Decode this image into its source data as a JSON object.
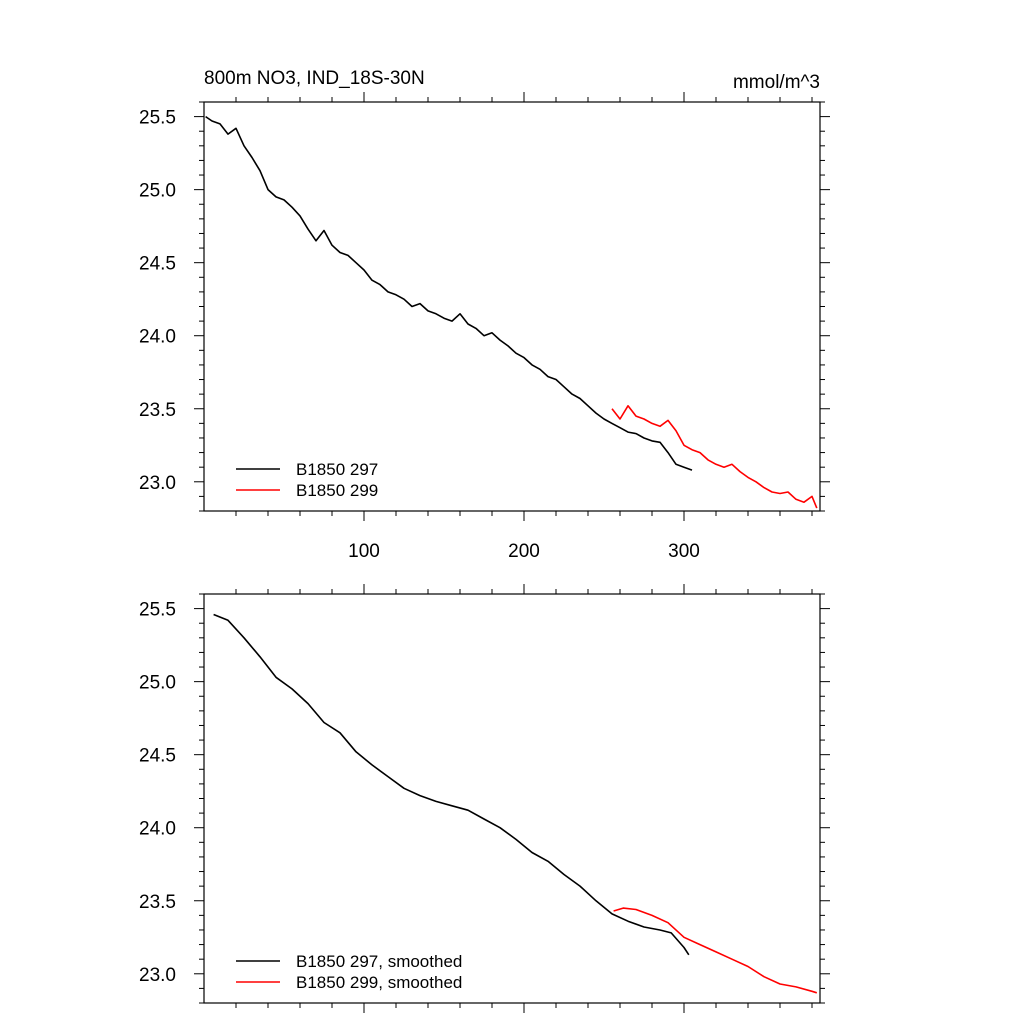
{
  "title": "800m NO3, IND_18S-30N",
  "units": "mmol/m^3",
  "colors": {
    "run297": "#000000",
    "run299": "#ff0000",
    "frame": "#000000"
  },
  "chart_data": [
    {
      "type": "line",
      "panel": "raw",
      "xlim": [
        0,
        385
      ],
      "ylim": [
        22.8,
        25.6
      ],
      "xticks": [
        100,
        200,
        300
      ],
      "xtick_labels": [
        "100",
        "200",
        "300"
      ],
      "yticks": [
        23.0,
        23.5,
        24.0,
        24.5,
        25.0,
        25.5
      ],
      "ytick_labels": [
        "23.0",
        "23.5",
        "24.0",
        "24.5",
        "25.0",
        "25.5"
      ],
      "legend_position": "bottom-left",
      "series": [
        {
          "name": "B1850 297",
          "color": "#000000",
          "x": [
            1,
            5,
            10,
            15,
            20,
            25,
            30,
            35,
            40,
            45,
            50,
            55,
            60,
            65,
            70,
            75,
            80,
            85,
            90,
            95,
            100,
            105,
            110,
            115,
            120,
            125,
            130,
            135,
            140,
            145,
            150,
            155,
            160,
            165,
            170,
            175,
            180,
            185,
            190,
            195,
            200,
            205,
            210,
            215,
            220,
            225,
            230,
            235,
            240,
            245,
            250,
            255,
            260,
            265,
            270,
            275,
            280,
            285,
            290,
            295,
            300,
            305
          ],
          "y": [
            25.5,
            25.47,
            25.45,
            25.38,
            25.42,
            25.3,
            25.22,
            25.13,
            25.0,
            24.95,
            24.93,
            24.88,
            24.82,
            24.73,
            24.65,
            24.72,
            24.62,
            24.57,
            24.55,
            24.5,
            24.45,
            24.38,
            24.35,
            24.3,
            24.28,
            24.25,
            24.2,
            24.22,
            24.17,
            24.15,
            24.12,
            24.1,
            24.15,
            24.08,
            24.05,
            24.0,
            24.02,
            23.97,
            23.93,
            23.88,
            23.85,
            23.8,
            23.77,
            23.72,
            23.7,
            23.65,
            23.6,
            23.57,
            23.52,
            23.47,
            23.43,
            23.4,
            23.37,
            23.34,
            23.33,
            23.3,
            23.28,
            23.27,
            23.2,
            23.12,
            23.1,
            23.08
          ]
        },
        {
          "name": "B1850 299",
          "color": "#ff0000",
          "x": [
            255,
            260,
            265,
            270,
            275,
            280,
            285,
            290,
            295,
            300,
            305,
            310,
            315,
            320,
            325,
            330,
            335,
            340,
            345,
            350,
            355,
            360,
            365,
            370,
            375,
            380,
            383
          ],
          "y": [
            23.5,
            23.43,
            23.52,
            23.45,
            23.43,
            23.4,
            23.38,
            23.42,
            23.35,
            23.25,
            23.22,
            23.2,
            23.15,
            23.12,
            23.1,
            23.12,
            23.07,
            23.03,
            23.0,
            22.96,
            22.93,
            22.92,
            22.93,
            22.88,
            22.86,
            22.9,
            22.82
          ]
        }
      ]
    },
    {
      "type": "line",
      "panel": "smoothed",
      "xlim": [
        0,
        385
      ],
      "ylim": [
        22.8,
        25.6
      ],
      "xticks": [
        100,
        200,
        300
      ],
      "yticks": [
        23.0,
        23.5,
        24.0,
        24.5,
        25.0,
        25.5
      ],
      "ytick_labels": [
        "23.0",
        "23.5",
        "24.0",
        "24.5",
        "25.0",
        "25.5"
      ],
      "legend_position": "bottom-left",
      "series": [
        {
          "name": "B1850 297, smoothed",
          "color": "#000000",
          "x": [
            6,
            15,
            25,
            35,
            45,
            55,
            65,
            75,
            85,
            95,
            105,
            115,
            125,
            135,
            145,
            155,
            165,
            175,
            185,
            195,
            205,
            215,
            225,
            235,
            245,
            255,
            265,
            275,
            285,
            292,
            300,
            303
          ],
          "y": [
            25.46,
            25.42,
            25.3,
            25.17,
            25.03,
            24.95,
            24.85,
            24.72,
            24.65,
            24.52,
            24.43,
            24.35,
            24.27,
            24.22,
            24.18,
            24.15,
            24.12,
            24.06,
            24.0,
            23.92,
            23.83,
            23.77,
            23.68,
            23.6,
            23.5,
            23.41,
            23.36,
            23.32,
            23.3,
            23.28,
            23.18,
            23.13
          ]
        },
        {
          "name": "B1850 299, smoothed",
          "color": "#ff0000",
          "x": [
            256,
            262,
            270,
            280,
            290,
            300,
            310,
            320,
            330,
            340,
            350,
            360,
            370,
            380,
            383
          ],
          "y": [
            23.43,
            23.45,
            23.44,
            23.4,
            23.35,
            23.25,
            23.2,
            23.15,
            23.1,
            23.05,
            22.98,
            22.93,
            22.91,
            22.88,
            22.87
          ]
        }
      ]
    }
  ]
}
